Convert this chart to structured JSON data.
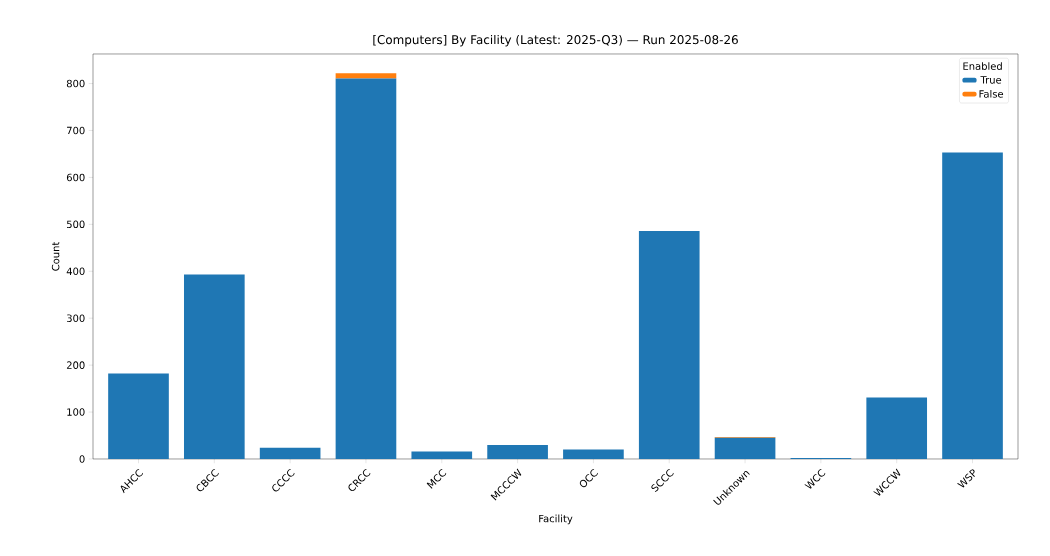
{
  "chart_data": {
    "type": "bar",
    "title": "[Computers] By Facility (Latest: 2025-Q3) — Run 2025-08-26",
    "xlabel": "Facility",
    "ylabel": "Count",
    "legend_title": "Enabled",
    "categories": [
      "AHCC",
      "CBCC",
      "CCCC",
      "CRCC",
      "MCC",
      "MCCCW",
      "OCC",
      "SCCC",
      "Unknown",
      "WCC",
      "WCCW",
      "WSP"
    ],
    "series": [
      {
        "name": "True",
        "color": "#1f77b4",
        "values": [
          182,
          393,
          24,
          811,
          16,
          30,
          20,
          486,
          45,
          2,
          131,
          653
        ]
      },
      {
        "name": "False",
        "color": "#ff7f0e",
        "values": [
          0,
          0,
          0,
          11,
          0,
          0,
          0,
          0,
          2,
          0,
          0,
          0
        ]
      }
    ],
    "stacked": true,
    "ylim": [
      0,
      863
    ],
    "yticks": [
      0,
      100,
      200,
      300,
      400,
      500,
      600,
      700,
      800
    ],
    "legend": "top right",
    "grid": false
  }
}
